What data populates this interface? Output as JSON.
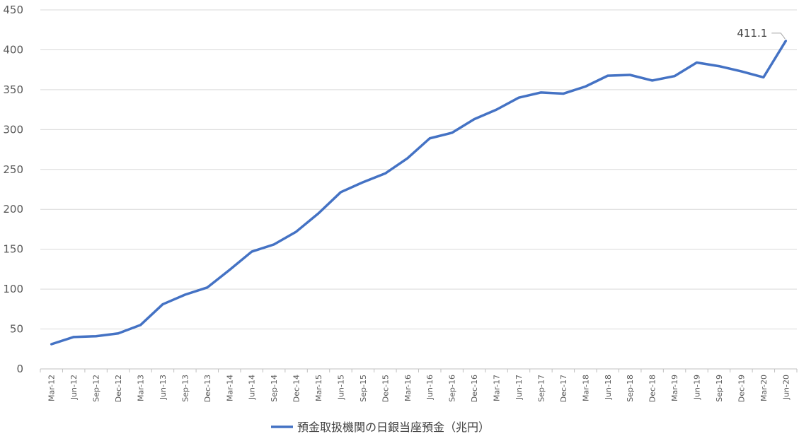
{
  "chart_data": {
    "type": "line",
    "categories": [
      "Mar-12",
      "Jun-12",
      "Sep-12",
      "Dec-12",
      "Mar-13",
      "Jun-13",
      "Sep-13",
      "Dec-13",
      "Mar-14",
      "Jun-14",
      "Sep-14",
      "Dec-14",
      "Mar-15",
      "Jun-15",
      "Sep-15",
      "Dec-15",
      "Mar-16",
      "Jun-16",
      "Sep-16",
      "Dec-16",
      "Mar-17",
      "Jun-17",
      "Sep-17",
      "Dec-17",
      "Mar-18",
      "Jun-18",
      "Sep-18",
      "Dec-18",
      "Mar-19",
      "Jun-19",
      "Sep-19",
      "Dec-19",
      "Mar-20",
      "Jun-20"
    ],
    "series": [
      {
        "name": "預金取扱機関の日銀当座預金（兆円）",
        "color": "#4472C4",
        "values": [
          31,
          40,
          41,
          44.5,
          55,
          81,
          93,
          102,
          124,
          147,
          156,
          172,
          195,
          221.5,
          234,
          245,
          264,
          289,
          296,
          313,
          325,
          340,
          346.5,
          345,
          354,
          367.5,
          368.5,
          361.5,
          367,
          384,
          379.5,
          373,
          365.5,
          411.1
        ]
      }
    ],
    "annotations": [
      {
        "label": "411.1"
      }
    ],
    "ylim": [
      0,
      450
    ],
    "yticks": [
      "0",
      "50",
      "100",
      "150",
      "200",
      "250",
      "300",
      "350",
      "400",
      "450"
    ],
    "grid": true,
    "legend_position": "bottom",
    "title": "",
    "xlabel": "",
    "ylabel": ""
  }
}
